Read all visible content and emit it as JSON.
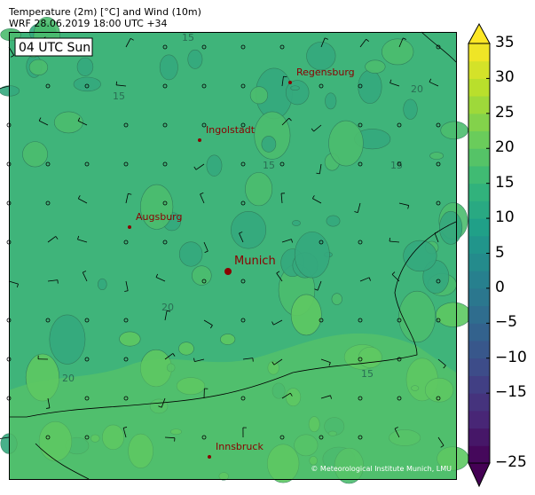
{
  "header": {
    "title": "Temperature (2m) [°C] and Wind (10m)",
    "subtitle": "WRF 28.06.2019 18:00 UTC +34"
  },
  "map": {
    "time_label": "04 UTC Sun",
    "copyright": "© Meteorological Institute Munich, LMU",
    "contour_label": "15",
    "contour_label_2": "20",
    "cities": [
      {
        "name": "Regensburg",
        "major": false
      },
      {
        "name": "Ingolstadt",
        "major": false
      },
      {
        "name": "Augsburg",
        "major": false
      },
      {
        "name": "Munich",
        "major": true
      },
      {
        "name": "Innsbruck",
        "major": false
      }
    ],
    "city_color": "#8b0000",
    "base_field_color": "#3fb47a",
    "warm_field_color": "#5ec962"
  },
  "colorbar": {
    "colormap": "viridis",
    "min": -25,
    "max": 35,
    "step": 2.5,
    "extend": "both",
    "ticks": [
      "35",
      "30",
      "25",
      "20",
      "15",
      "10",
      "5",
      "0",
      "−5",
      "−10",
      "−15",
      "−25"
    ]
  }
}
